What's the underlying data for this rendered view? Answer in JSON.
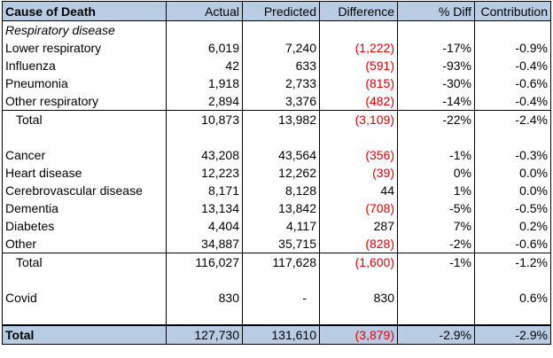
{
  "header": {
    "cause": "Cause of Death",
    "actual": "Actual",
    "predicted": "Predicted",
    "difference": "Difference",
    "pct_diff": "% Diff",
    "contribution": "Contribution"
  },
  "section_respiratory": "Respiratory disease",
  "rows": [
    {
      "cause": "Lower respiratory",
      "actual": "6,019",
      "predicted": "7,240",
      "difference": "(1,222)",
      "pct_diff": "-17%",
      "contribution": "-0.9%"
    },
    {
      "cause": "Influenza",
      "actual": "42",
      "predicted": "633",
      "difference": "(591)",
      "pct_diff": "-93%",
      "contribution": "-0.4%"
    },
    {
      "cause": "Pneumonia",
      "actual": "1,918",
      "predicted": "2,733",
      "difference": "(815)",
      "pct_diff": "-30%",
      "contribution": "-0.6%"
    },
    {
      "cause": "Other respiratory",
      "actual": "2,894",
      "predicted": "3,376",
      "difference": "(482)",
      "pct_diff": "-14%",
      "contribution": "-0.4%"
    },
    {
      "cause": "Total",
      "actual": "10,873",
      "predicted": "13,982",
      "difference": "(3,109)",
      "pct_diff": "-22%",
      "contribution": "-2.4%"
    },
    {
      "cause": "Cancer",
      "actual": "43,208",
      "predicted": "43,564",
      "difference": "(356)",
      "pct_diff": "-1%",
      "contribution": "-0.3%"
    },
    {
      "cause": "Heart disease",
      "actual": "12,223",
      "predicted": "12,262",
      "difference": "(39)",
      "pct_diff": "0%",
      "contribution": "0.0%"
    },
    {
      "cause": "Cerebrovascular disease",
      "actual": "8,171",
      "predicted": "8,128",
      "difference": "44",
      "pct_diff": "1%",
      "contribution": "0.0%"
    },
    {
      "cause": "Dementia",
      "actual": "13,134",
      "predicted": "13,842",
      "difference": "(708)",
      "pct_diff": "-5%",
      "contribution": "-0.5%"
    },
    {
      "cause": "Diabetes",
      "actual": "4,404",
      "predicted": "4,117",
      "difference": "287",
      "pct_diff": "7%",
      "contribution": "0.2%"
    },
    {
      "cause": "Other",
      "actual": "34,887",
      "predicted": "35,715",
      "difference": "(828)",
      "pct_diff": "-2%",
      "contribution": "-0.6%"
    },
    {
      "cause": "Total",
      "actual": "116,027",
      "predicted": "117,628",
      "difference": "(1,600)",
      "pct_diff": "-1%",
      "contribution": "-1.2%"
    },
    {
      "cause": "Covid",
      "actual": "830",
      "predicted": "-",
      "difference": "830",
      "pct_diff": "",
      "contribution": "0.6%"
    }
  ],
  "grand_total": {
    "cause": "Total",
    "actual": "127,730",
    "predicted": "131,610",
    "difference": "(3,879)",
    "pct_diff": "-2.9%",
    "contribution": "-2.9%"
  },
  "colors": {
    "header_fill": "#b8cce4",
    "negative_text": "#e00000"
  }
}
